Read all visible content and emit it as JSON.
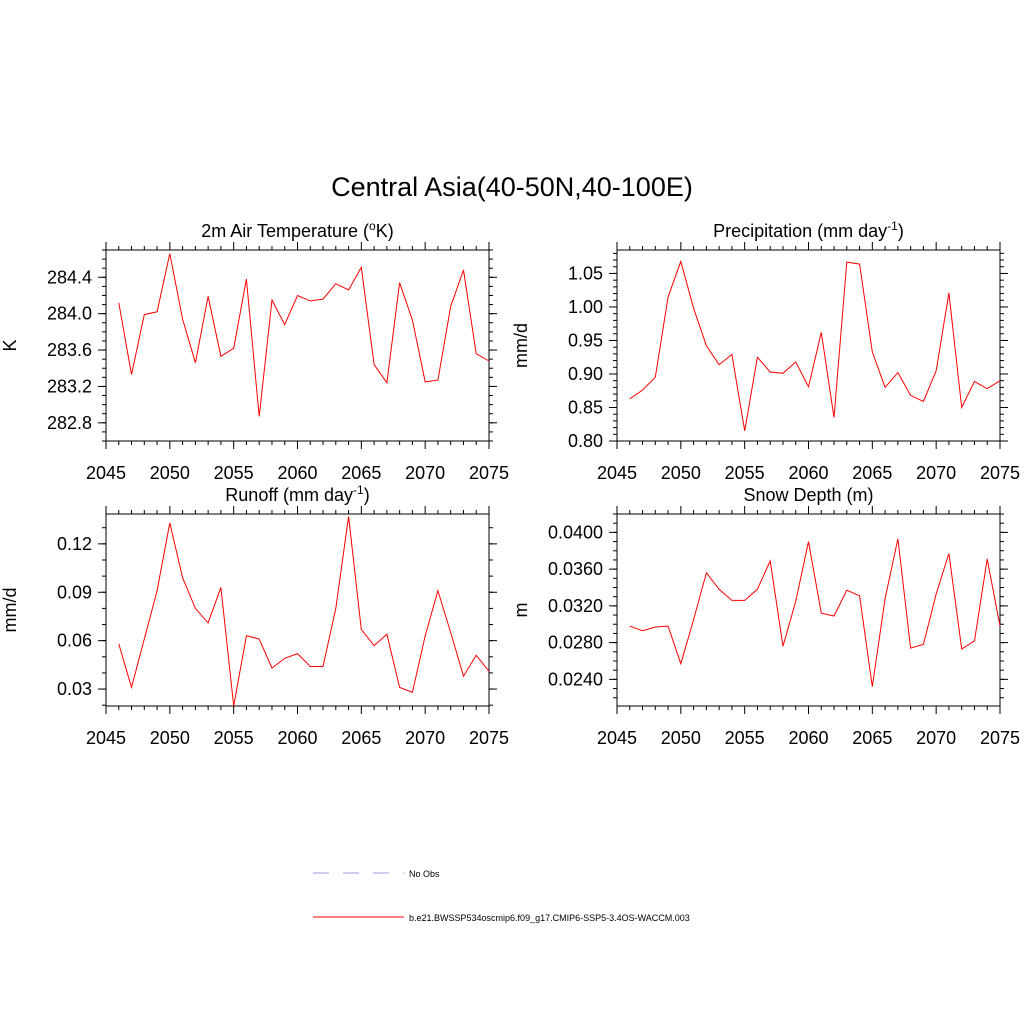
{
  "figure": {
    "title": "Central Asia(40-50N,40-100E)"
  },
  "legend": {
    "items": [
      {
        "label": "No Obs",
        "color": "#9a9ae6",
        "style": "dashed"
      },
      {
        "label": "b.e21.BWSSP534oscmip6.f09_g17.CMIP6-SSP5-3.4OS-WACCM.003",
        "color": "#ff0000",
        "style": "solid"
      }
    ]
  },
  "chart_data": [
    {
      "type": "line",
      "id": "temp",
      "title_main": "2m Air Temperature (",
      "title_sup": "o",
      "title_after": "K)",
      "ylabel": "K",
      "xlim": [
        2045,
        2075
      ],
      "ylim": [
        282.6,
        284.7
      ],
      "xticks": [
        2045,
        2050,
        2055,
        2060,
        2065,
        2070,
        2075
      ],
      "yticks": [
        282.8,
        283.2,
        283.6,
        284.0,
        284.4
      ],
      "ytick_labels": [
        "282.8",
        "283.2",
        "283.6",
        "284.0",
        "284.4"
      ],
      "yminor": 0.1,
      "series": [
        {
          "name": "b.e21.BWSSP534oscmip6.f09_g17.CMIP6-SSP5-3.4OS-WACCM.003",
          "color": "#ff0000",
          "x": [
            2046,
            2047,
            2048,
            2049,
            2050,
            2051,
            2052,
            2053,
            2054,
            2055,
            2056,
            2057,
            2058,
            2059,
            2060,
            2061,
            2062,
            2063,
            2064,
            2065,
            2066,
            2067,
            2068,
            2069,
            2070,
            2071,
            2072,
            2073,
            2074,
            2075
          ],
          "values": [
            284.12,
            283.33,
            283.99,
            284.02,
            284.66,
            283.94,
            283.46,
            284.19,
            283.53,
            283.62,
            284.38,
            282.87,
            284.15,
            283.88,
            284.2,
            284.14,
            284.16,
            284.33,
            284.26,
            284.51,
            283.44,
            283.24,
            284.34,
            283.93,
            283.25,
            283.27,
            284.08,
            284.48,
            283.56,
            283.48
          ]
        }
      ]
    },
    {
      "type": "line",
      "id": "precip",
      "title_main": "Precipitation (mm day",
      "title_sup": "-1",
      "title_after": ")",
      "ylabel": "mm/d",
      "xlim": [
        2045,
        2075
      ],
      "ylim": [
        0.8,
        1.085
      ],
      "xticks": [
        2045,
        2050,
        2055,
        2060,
        2065,
        2070,
        2075
      ],
      "yticks": [
        0.8,
        0.85,
        0.9,
        0.95,
        1.0,
        1.05
      ],
      "ytick_labels": [
        "0.80",
        "0.85",
        "0.90",
        "0.95",
        "1.00",
        "1.05"
      ],
      "yminor": 0.01,
      "series": [
        {
          "name": "b.e21.BWSSP534oscmip6.f09_g17.CMIP6-SSP5-3.4OS-WACCM.003",
          "color": "#ff0000",
          "x": [
            2046,
            2047,
            2048,
            2049,
            2050,
            2051,
            2052,
            2053,
            2054,
            2055,
            2056,
            2057,
            2058,
            2059,
            2060,
            2061,
            2062,
            2063,
            2064,
            2065,
            2066,
            2067,
            2068,
            2069,
            2070,
            2071,
            2072,
            2073,
            2074,
            2075
          ],
          "values": [
            0.863,
            0.876,
            0.895,
            1.015,
            1.068,
            0.998,
            0.942,
            0.914,
            0.929,
            0.815,
            0.925,
            0.903,
            0.901,
            0.918,
            0.881,
            0.962,
            0.835,
            1.067,
            1.064,
            0.933,
            0.88,
            0.902,
            0.868,
            0.859,
            0.905,
            1.021,
            0.85,
            0.889,
            0.878,
            0.89
          ]
        }
      ]
    },
    {
      "type": "line",
      "id": "runoff",
      "title_main": "Runoff (mm day",
      "title_sup": "-1",
      "title_after": ")",
      "ylabel": "mm/d",
      "xlim": [
        2045,
        2075
      ],
      "ylim": [
        0.0195,
        0.1385
      ],
      "xticks": [
        2045,
        2050,
        2055,
        2060,
        2065,
        2070,
        2075
      ],
      "yticks": [
        0.03,
        0.06,
        0.09,
        0.12
      ],
      "ytick_labels": [
        "0.03",
        "0.06",
        "0.09",
        "0.12"
      ],
      "yminor": 0.01,
      "series": [
        {
          "name": "b.e21.BWSSP534oscmip6.f09_g17.CMIP6-SSP5-3.4OS-WACCM.003",
          "color": "#ff0000",
          "x": [
            2046,
            2047,
            2048,
            2049,
            2050,
            2051,
            2052,
            2053,
            2054,
            2055,
            2056,
            2057,
            2058,
            2059,
            2060,
            2061,
            2062,
            2063,
            2064,
            2065,
            2066,
            2067,
            2068,
            2069,
            2070,
            2071,
            2072,
            2073,
            2074,
            2075
          ],
          "values": [
            0.058,
            0.031,
            0.061,
            0.091,
            0.133,
            0.099,
            0.08,
            0.071,
            0.093,
            0.0195,
            0.063,
            0.061,
            0.043,
            0.049,
            0.052,
            0.044,
            0.044,
            0.08,
            0.137,
            0.067,
            0.057,
            0.064,
            0.031,
            0.028,
            0.063,
            0.091,
            0.065,
            0.038,
            0.051,
            0.041
          ]
        }
      ]
    },
    {
      "type": "line",
      "id": "snow",
      "title_main": "Snow Depth (m)",
      "title_sup": "",
      "title_after": "",
      "ylabel": "m",
      "xlim": [
        2045,
        2075
      ],
      "ylim": [
        0.0211,
        0.042
      ],
      "xticks": [
        2045,
        2050,
        2055,
        2060,
        2065,
        2070,
        2075
      ],
      "yticks": [
        0.024,
        0.028,
        0.032,
        0.036,
        0.04
      ],
      "ytick_labels": [
        "0.0240",
        "0.0280",
        "0.0320",
        "0.0360",
        "0.0400"
      ],
      "yminor": 0.001,
      "series": [
        {
          "name": "b.e21.BWSSP534oscmip6.f09_g17.CMIP6-SSP5-3.4OS-WACCM.003",
          "color": "#ff0000",
          "x": [
            2046,
            2047,
            2048,
            2049,
            2050,
            2051,
            2052,
            2053,
            2054,
            2055,
            2056,
            2057,
            2058,
            2059,
            2060,
            2061,
            2062,
            2063,
            2064,
            2065,
            2066,
            2067,
            2068,
            2069,
            2070,
            2071,
            2072,
            2073,
            2074,
            2075
          ],
          "values": [
            0.0298,
            0.0293,
            0.0297,
            0.0298,
            0.0257,
            0.0305,
            0.0356,
            0.0338,
            0.0326,
            0.0326,
            0.0338,
            0.0369,
            0.0276,
            0.0325,
            0.039,
            0.0312,
            0.0309,
            0.0337,
            0.0331,
            0.0232,
            0.0328,
            0.0393,
            0.0274,
            0.0278,
            0.0333,
            0.0377,
            0.0273,
            0.0282,
            0.0371,
            0.0298
          ]
        }
      ]
    }
  ]
}
